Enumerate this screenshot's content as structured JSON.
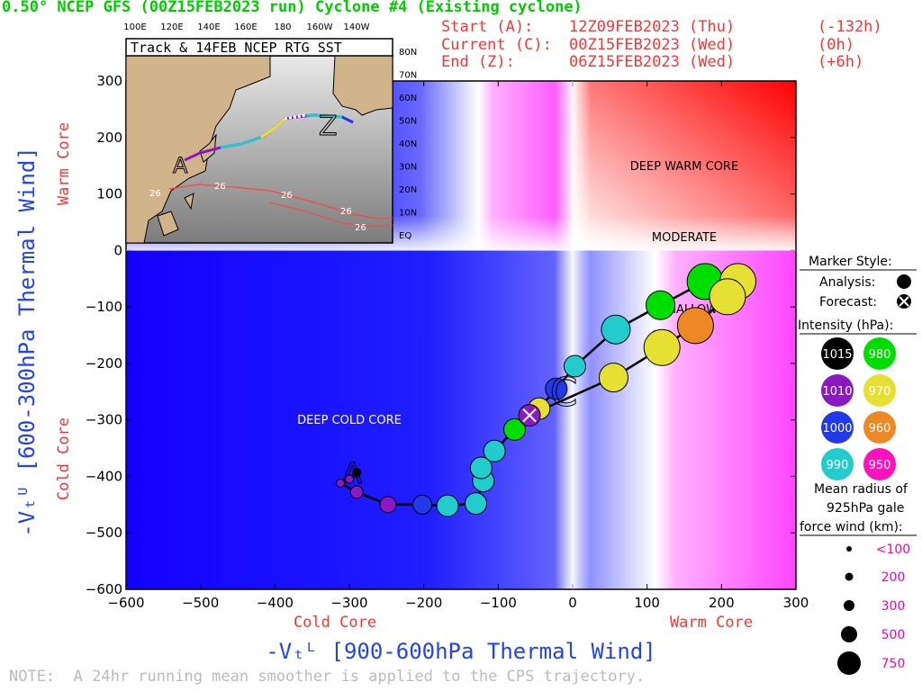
{
  "header": {
    "title": "0.50° NCEP GFS (00Z15FEB2023 run) Cyclone #4 (Existing cyclone)",
    "start_label": "Start (A):",
    "start_time": "12Z09FEB2023 (Thu)",
    "start_offset": "(-132h)",
    "current_label": "Current (C):",
    "current_time": "00Z15FEB2023 (Wed)",
    "current_offset": "(0h)",
    "end_label": "End (Z):",
    "end_time": "06Z15FEB2023 (Wed)",
    "end_offset": "(+6h)"
  },
  "note": "NOTE:  A 24hr running mean smoother is applied to the CPS trajectory.",
  "inset": {
    "title": "Track & 14FEB NCEP RTG SST",
    "lon_labels": [
      "100E",
      "120E",
      "140E",
      "160E",
      "180",
      "160W",
      "140W"
    ],
    "lat_labels": [
      "80N",
      "70N",
      "60N",
      "50N",
      "40N",
      "30N",
      "20N",
      "10N",
      "EQ"
    ],
    "sst_label": "26",
    "start_marker": "A",
    "end_marker": "Z"
  },
  "legend": {
    "marker_style": "Marker Style:",
    "analysis": "Analysis:",
    "forecast": "Forecast:",
    "intensity_title": "Intensity (hPa):",
    "intensity": [
      {
        "label": "1015",
        "color": "#000000"
      },
      {
        "label": "980",
        "color": "#00dd00"
      },
      {
        "label": "1010",
        "color": "#8a19c4"
      },
      {
        "label": "970",
        "color": "#e6e032"
      },
      {
        "label": "1000",
        "color": "#2239ea"
      },
      {
        "label": "960",
        "color": "#ee8822"
      },
      {
        "label": "990",
        "color": "#22cccc"
      },
      {
        "label": "950",
        "color": "#ff11bb"
      }
    ],
    "radius_title_1": "Mean radius of",
    "radius_title_2": "925hPa gale",
    "radius_title_3": "force wind (km):",
    "radius_sizes": [
      "<100",
      "200",
      "300",
      "500",
      "750"
    ]
  },
  "chart_data": {
    "type": "scatter",
    "xlabel": "-Vₜᴸ [900-600hPa Thermal Wind]",
    "ylabel": "-Vₜᵁ [600-300hPa Thermal Wind]",
    "x_left_label": "Cold Core",
    "x_right_label": "Warm Core",
    "y_bottom_label": "Cold Core",
    "y_top_label": "Warm Core",
    "xlim": [
      -600,
      300
    ],
    "ylim": [
      -600,
      300
    ],
    "xticks": [
      -600,
      -500,
      -400,
      -300,
      -200,
      -100,
      0,
      100,
      200,
      300
    ],
    "yticks": [
      -600,
      -500,
      -400,
      -300,
      -200,
      -100,
      0,
      100,
      200,
      300
    ],
    "quadrant_labels": {
      "deep_warm": "DEEP WARM CORE",
      "moderate": "MODERATE",
      "shallow": "SHALLOW",
      "deep_cold": "DEEP COLD CORE"
    },
    "start_marker": "A",
    "current_marker": "C",
    "end_marker": "Z",
    "track": [
      {
        "x": -290,
        "y": -393,
        "p": 1015,
        "r": 100
      },
      {
        "x": -300,
        "y": -405,
        "p": 1010,
        "r": 100
      },
      {
        "x": -312,
        "y": -412,
        "p": 1010,
        "r": 100
      },
      {
        "x": -290,
        "y": -428,
        "p": 1010,
        "r": 150
      },
      {
        "x": -248,
        "y": -450,
        "p": 1010,
        "r": 200
      },
      {
        "x": -202,
        "y": -450,
        "p": 1000,
        "r": 250
      },
      {
        "x": -168,
        "y": -452,
        "p": 990,
        "r": 300
      },
      {
        "x": -130,
        "y": -448,
        "p": 990,
        "r": 300
      },
      {
        "x": -120,
        "y": -408,
        "p": 990,
        "r": 300
      },
      {
        "x": -123,
        "y": -385,
        "p": 990,
        "r": 300
      },
      {
        "x": -105,
        "y": -355,
        "p": 990,
        "r": 300
      },
      {
        "x": -78,
        "y": -317,
        "p": 980,
        "r": 300
      },
      {
        "x": -45,
        "y": -280,
        "p": 970,
        "r": 300
      },
      {
        "x": -22,
        "y": -245,
        "p": 1000,
        "r": 300
      },
      {
        "x": 3,
        "y": -205,
        "p": 990,
        "r": 300
      },
      {
        "x": 58,
        "y": -140,
        "p": 990,
        "r": 400
      },
      {
        "x": 118,
        "y": -97,
        "p": 980,
        "r": 400
      },
      {
        "x": 178,
        "y": -55,
        "p": 980,
        "r": 500
      },
      {
        "x": 222,
        "y": -55,
        "p": 970,
        "r": 500
      },
      {
        "x": 208,
        "y": -82,
        "p": 970,
        "r": 500
      },
      {
        "x": 165,
        "y": -133,
        "p": 960,
        "r": 500
      },
      {
        "x": 120,
        "y": -172,
        "p": 970,
        "r": 500
      },
      {
        "x": 55,
        "y": -225,
        "p": 970,
        "r": 400
      },
      {
        "x": -58,
        "y": -292,
        "p": 1010,
        "r": 300
      }
    ]
  }
}
